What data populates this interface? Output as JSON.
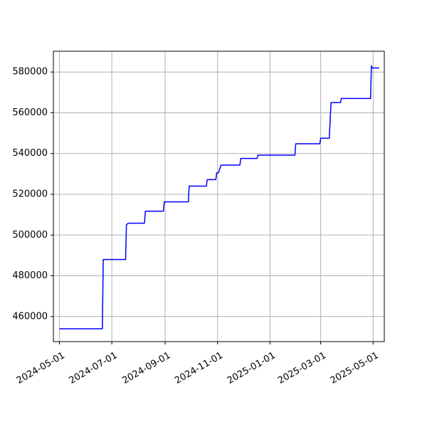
{
  "chart_data": {
    "type": "line",
    "title": "",
    "xlabel": "",
    "ylabel": "",
    "grid": true,
    "x_axis": {
      "type": "date",
      "range": [
        "2024-04-24",
        "2025-05-14"
      ],
      "ticks": [
        "2024-05-01",
        "2024-07-01",
        "2024-09-01",
        "2024-11-01",
        "2025-01-01",
        "2025-03-01",
        "2025-05-01"
      ]
    },
    "y_axis": {
      "range": [
        447700,
        590200
      ],
      "ticks": [
        460000,
        480000,
        500000,
        520000,
        540000,
        560000,
        580000
      ]
    },
    "series": [
      {
        "color": "#0000ff",
        "points": [
          {
            "x": "2024-05-01",
            "y": 454000
          },
          {
            "x": "2024-06-20",
            "y": 454000
          },
          {
            "x": "2024-06-21",
            "y": 488000
          },
          {
            "x": "2024-07-17",
            "y": 488000
          },
          {
            "x": "2024-07-18",
            "y": 505000
          },
          {
            "x": "2024-07-20",
            "y": 505800
          },
          {
            "x": "2024-08-08",
            "y": 505800
          },
          {
            "x": "2024-08-09",
            "y": 511700
          },
          {
            "x": "2024-08-30",
            "y": 511700
          },
          {
            "x": "2024-08-31",
            "y": 516300
          },
          {
            "x": "2024-09-28",
            "y": 516300
          },
          {
            "x": "2024-09-29",
            "y": 524000
          },
          {
            "x": "2024-10-19",
            "y": 524000
          },
          {
            "x": "2024-10-20",
            "y": 527200
          },
          {
            "x": "2024-10-30",
            "y": 527200
          },
          {
            "x": "2024-10-31",
            "y": 530500
          },
          {
            "x": "2024-11-02",
            "y": 530500
          },
          {
            "x": "2024-11-04",
            "y": 533000
          },
          {
            "x": "2024-11-05",
            "y": 534300
          },
          {
            "x": "2024-11-27",
            "y": 534300
          },
          {
            "x": "2024-11-28",
            "y": 537600
          },
          {
            "x": "2024-12-17",
            "y": 537600
          },
          {
            "x": "2024-12-18",
            "y": 539200
          },
          {
            "x": "2025-01-30",
            "y": 539200
          },
          {
            "x": "2025-01-31",
            "y": 544800
          },
          {
            "x": "2025-02-28",
            "y": 544800
          },
          {
            "x": "2025-03-01",
            "y": 547500
          },
          {
            "x": "2025-03-11",
            "y": 547500
          },
          {
            "x": "2025-03-13",
            "y": 565000
          },
          {
            "x": "2025-03-24",
            "y": 565000
          },
          {
            "x": "2025-03-25",
            "y": 567000
          },
          {
            "x": "2025-04-28",
            "y": 567000
          },
          {
            "x": "2025-04-29",
            "y": 583000
          },
          {
            "x": "2025-04-30",
            "y": 582000
          },
          {
            "x": "2025-05-08",
            "y": 582000
          }
        ]
      }
    ]
  }
}
